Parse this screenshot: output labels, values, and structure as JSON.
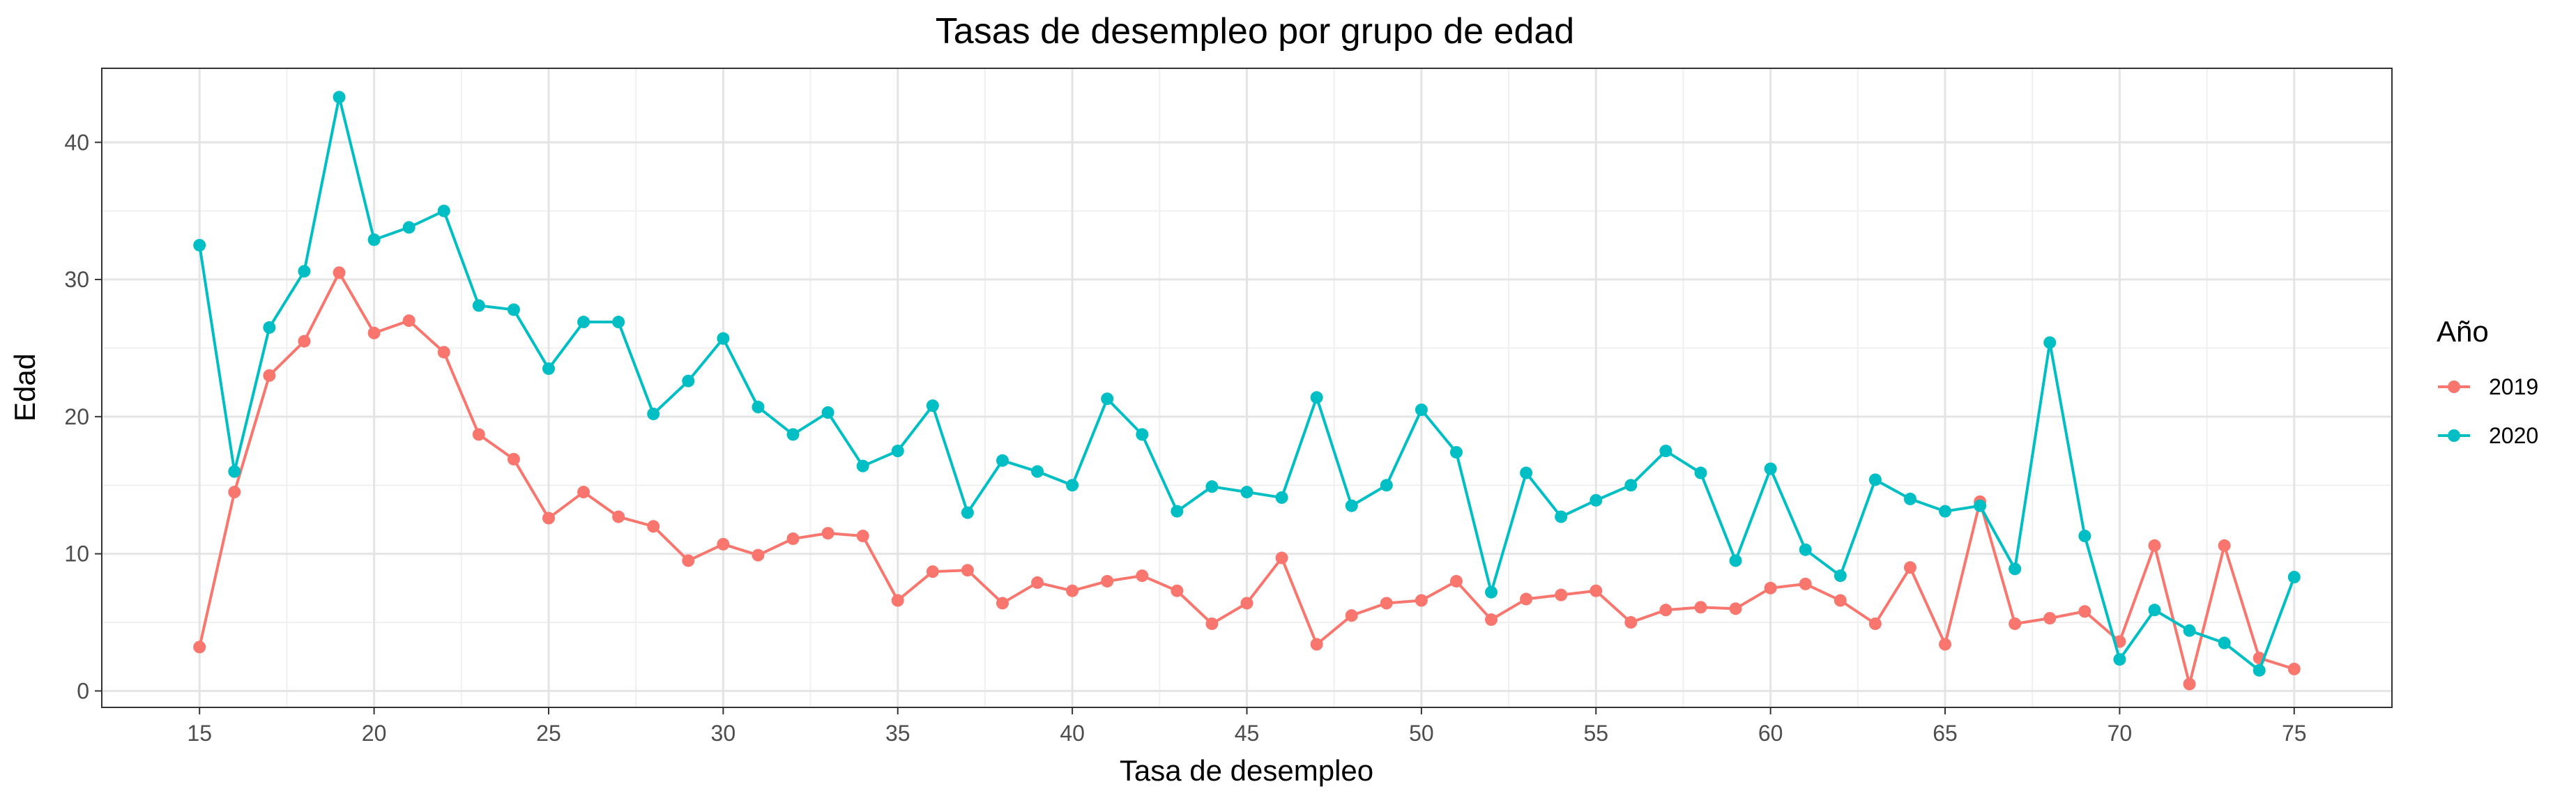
{
  "chart_data": {
    "type": "line",
    "title": "Tasas de desempleo por grupo de edad",
    "xlabel": "Tasa de desempleo",
    "ylabel": "Edad",
    "xlim": [
      12.2,
      77.8
    ],
    "ylim": [
      -1.2,
      45.4
    ],
    "x_ticks": [
      15,
      20,
      25,
      30,
      35,
      40,
      45,
      50,
      55,
      60,
      65,
      70,
      75
    ],
    "y_ticks": [
      0,
      10,
      20,
      30,
      40
    ],
    "grid": true,
    "legend": {
      "title": "Año",
      "position": "right"
    },
    "x": [
      15,
      16,
      17,
      18,
      19,
      20,
      21,
      22,
      23,
      24,
      25,
      26,
      27,
      28,
      29,
      30,
      31,
      32,
      33,
      34,
      35,
      36,
      37,
      38,
      39,
      40,
      41,
      42,
      43,
      44,
      45,
      46,
      47,
      48,
      49,
      50,
      51,
      52,
      53,
      54,
      55,
      56,
      57,
      58,
      59,
      60,
      61,
      62,
      63,
      64,
      65,
      66,
      67,
      68,
      69,
      70,
      71,
      72,
      73,
      74,
      75
    ],
    "series": [
      {
        "name": "2019",
        "color": "#F8766D",
        "values": [
          3.2,
          14.5,
          23.0,
          25.5,
          30.5,
          26.1,
          27.0,
          24.7,
          18.7,
          16.9,
          12.6,
          14.5,
          12.7,
          12.0,
          9.5,
          10.7,
          9.9,
          11.1,
          11.5,
          11.3,
          6.6,
          8.7,
          8.8,
          6.4,
          7.9,
          7.3,
          8.0,
          8.4,
          7.3,
          4.9,
          6.4,
          9.7,
          3.4,
          5.5,
          6.4,
          6.6,
          8.0,
          5.2,
          6.7,
          7.0,
          7.3,
          5.0,
          5.9,
          6.1,
          6.0,
          7.5,
          7.8,
          6.6,
          4.9,
          9.0,
          3.4,
          13.8,
          4.9,
          5.3,
          5.8,
          3.6,
          10.6,
          0.5,
          10.6,
          2.4,
          1.6
        ]
      },
      {
        "name": "2020",
        "color": "#00BFC4",
        "values": [
          32.5,
          16.0,
          26.5,
          30.6,
          43.3,
          32.9,
          33.8,
          35.0,
          28.1,
          27.8,
          23.5,
          26.9,
          26.9,
          20.2,
          22.6,
          25.7,
          20.7,
          18.7,
          20.3,
          16.4,
          17.5,
          20.8,
          13.0,
          16.8,
          16.0,
          15.0,
          21.3,
          18.7,
          13.1,
          14.9,
          14.5,
          14.1,
          21.4,
          13.5,
          15.0,
          20.5,
          17.4,
          7.2,
          15.9,
          12.7,
          13.9,
          15.0,
          17.5,
          15.9,
          9.5,
          16.2,
          10.3,
          8.4,
          15.4,
          14.0,
          13.1,
          13.5,
          8.9,
          25.4,
          11.3,
          2.3,
          5.9,
          4.4,
          3.5,
          1.5,
          8.3
        ]
      }
    ]
  }
}
